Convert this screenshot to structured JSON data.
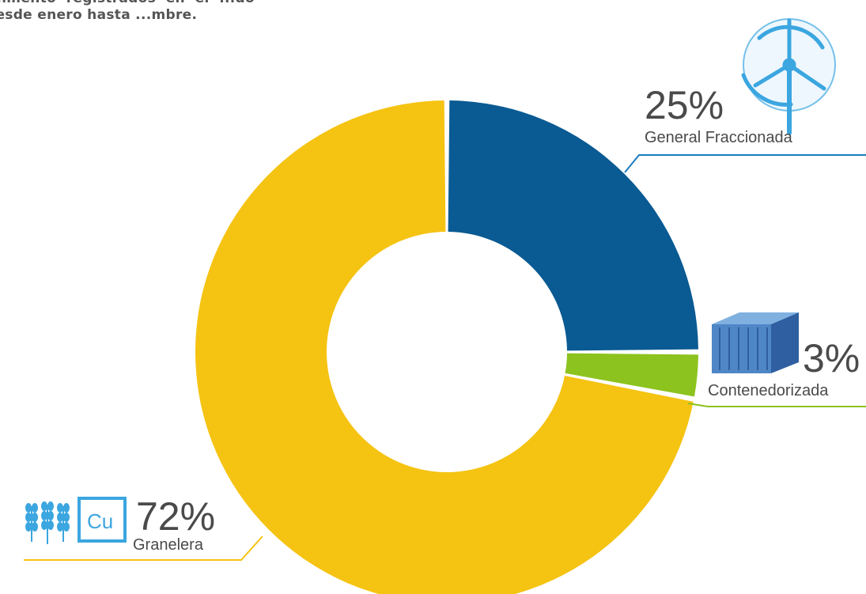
{
  "intro": {
    "text": "...miento registrados en el ...do desde enero hasta ...mbre."
  },
  "chart_data": {
    "type": "pie",
    "categories": [
      "General Fraccionada",
      "Contenedorizada",
      "Granelera"
    ],
    "values": [
      25,
      3,
      72
    ],
    "value_labels": [
      "25%",
      "3%",
      "72%"
    ],
    "colors": [
      "#0a5a93",
      "#8cc31e",
      "#f5c312"
    ],
    "donut": true,
    "title": ""
  },
  "icons": {
    "general": "wind-turbine-icon",
    "contenedorizada": "shipping-container-icon",
    "granelera_1": "wheat-icon",
    "granelera_2": "copper-element-icon",
    "copper_symbol": "Cu"
  }
}
